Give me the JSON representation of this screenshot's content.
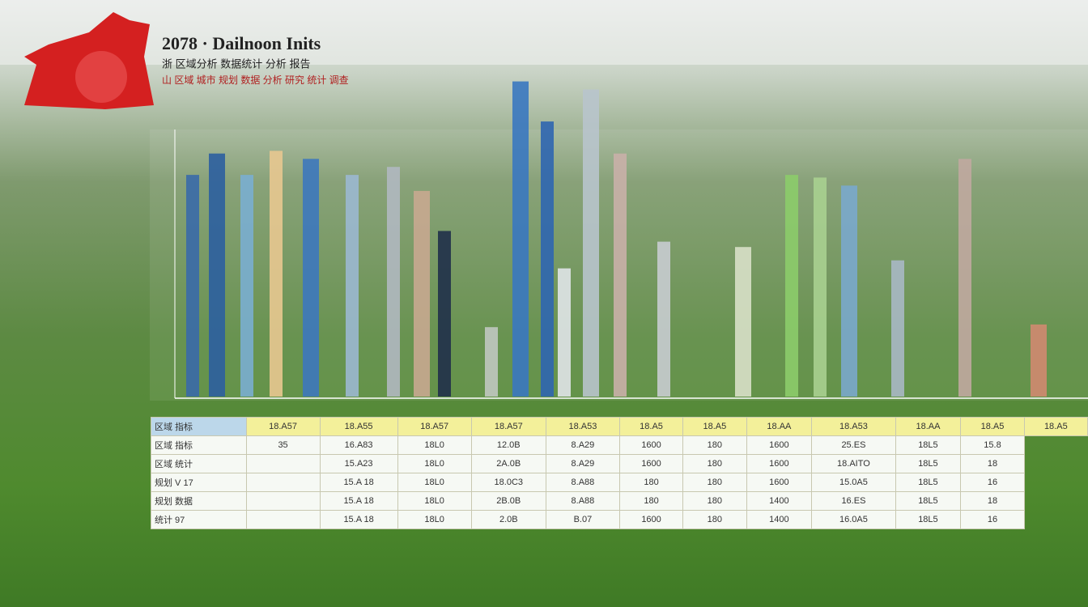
{
  "header": {
    "title": "2078 · Dailnoon Inits",
    "subtitle": "浙 区域分析 数据统计 分析 报告",
    "note": "山 区域 城市 规划 数据 分析 研究 统计 调查"
  },
  "chart_data": {
    "type": "bar",
    "categories": [
      null,
      null,
      null,
      null,
      null,
      null,
      null,
      null,
      null,
      null,
      null,
      null,
      null,
      null,
      null,
      null,
      null,
      null,
      null,
      null,
      null,
      null,
      null
    ],
    "values": [
      83,
      91,
      83,
      92,
      89,
      83,
      86,
      77,
      62,
      26,
      118,
      103,
      48,
      115,
      91,
      58,
      56,
      83,
      82,
      79,
      51,
      89,
      27
    ],
    "colors": [
      "#3a6aa8",
      "#2c5fa0",
      "#7aaed0",
      "#e8c890",
      "#3d78bd",
      "#9bb8d0",
      "#b0b8c0",
      "#c8a890",
      "#20304a",
      "#c0c8c0",
      "#3a78c0",
      "#2f66b0",
      "#e0e4e8",
      "#b8c4cc",
      "#c9b0a8",
      "#c8ccd0",
      "#d8e0c8",
      "#8ccc6a",
      "#a8d090",
      "#7aa8cc",
      "#a8b8c4",
      "#c0a8a0",
      "#d08a70"
    ],
    "ylim": [
      0,
      120
    ]
  },
  "table": {
    "head": [
      [
        "区域 指标",
        "18.A57",
        "18.A55",
        "18.A57",
        "18.A57",
        "18.A53",
        "18.A5",
        "18.A5",
        "18.AA",
        "18.A53",
        "18.AA",
        "18.A5",
        "18.A5"
      ]
    ],
    "rows": [
      [
        "区域 指标",
        "35",
        "16.A83",
        "18L0",
        "12.0B",
        "8.A29",
        "1600",
        "180",
        "1600",
        "25.ES",
        "18L5",
        "15.8"
      ],
      [
        "区域 统计",
        "",
        "15.A23",
        "18L0",
        "2A.0B",
        "8.A29",
        "1600",
        "180",
        "1600",
        "18.AITO",
        "18L5",
        "18"
      ],
      [
        "规划 V 17",
        "",
        "15.A 18",
        "18L0",
        "18.0C3",
        "8.A88",
        "180",
        "180",
        "1600",
        "15.0A5",
        "18L5",
        "16"
      ],
      [
        "规划 数据",
        "",
        "15.A 18",
        "18L0",
        "2B.0B",
        "8.A88",
        "180",
        "180",
        "1400",
        "16.ES",
        "18L5",
        "18"
      ],
      [
        "统计 97",
        "",
        "15.A 18",
        "18L0",
        "2.0B",
        "B.07",
        "1600",
        "180",
        "1400",
        "16.0A5",
        "18L5",
        "16"
      ]
    ]
  }
}
